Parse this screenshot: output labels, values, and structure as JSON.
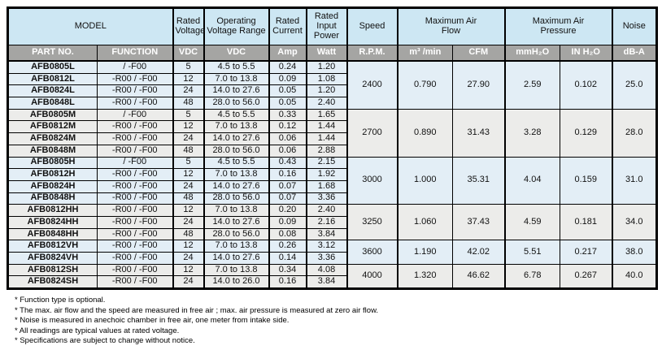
{
  "colors": {
    "header_blue": "#cde7f3",
    "subheader_gray": "#a5a5a3",
    "row_blue": "#e3eef6",
    "row_gray": "#ececea",
    "border": "#000000"
  },
  "header": {
    "top": [
      "MODEL",
      "Rated Voltage",
      "Operating Voltage Range",
      "Rated Current",
      "Rated Input Power",
      "Speed",
      "Maximum Air Flow",
      "Maximum Air Pressure",
      "Noise"
    ],
    "sub": [
      "PART NO.",
      "FUNCTION",
      "VDC",
      "VDC",
      "Amp",
      "Watt",
      "R.P.M.",
      "m³ /min",
      "CFM",
      "mmH₂O",
      "IN H₂O",
      "dB-A"
    ]
  },
  "groups": [
    {
      "tint": "blue",
      "speed": "2400",
      "m3min": "0.790",
      "cfm": "27.90",
      "mmh2o": "2.59",
      "inh2o": "0.102",
      "noise": "25.0",
      "rows": [
        {
          "part": "AFB0805L",
          "function": "/ -F00",
          "vdc": "5",
          "range": "4.5 to 5.5",
          "amp": "0.24",
          "watt": "1.20"
        },
        {
          "part": "AFB0812L",
          "function": "-R00 / -F00",
          "vdc": "12",
          "range": "7.0 to 13.8",
          "amp": "0.09",
          "watt": "1.08"
        },
        {
          "part": "AFB0824L",
          "function": "-R00 / -F00",
          "vdc": "24",
          "range": "14.0 to 27.6",
          "amp": "0.05",
          "watt": "1.20"
        },
        {
          "part": "AFB0848L",
          "function": "-R00 / -F00",
          "vdc": "48",
          "range": "28.0 to 56.0",
          "amp": "0.05",
          "watt": "2.40"
        }
      ]
    },
    {
      "tint": "gray",
      "speed": "2700",
      "m3min": "0.890",
      "cfm": "31.43",
      "mmh2o": "3.28",
      "inh2o": "0.129",
      "noise": "28.0",
      "rows": [
        {
          "part": "AFB0805M",
          "function": "/ -F00",
          "vdc": "5",
          "range": "4.5 to 5.5",
          "amp": "0.33",
          "watt": "1.65"
        },
        {
          "part": "AFB0812M",
          "function": "-R00 / -F00",
          "vdc": "12",
          "range": "7.0 to 13.8",
          "amp": "0.12",
          "watt": "1.44"
        },
        {
          "part": "AFB0824M",
          "function": "-R00 / -F00",
          "vdc": "24",
          "range": "14.0 to 27.6",
          "amp": "0.06",
          "watt": "1.44"
        },
        {
          "part": "AFB0848M",
          "function": "-R00 / -F00",
          "vdc": "48",
          "range": "28.0 to 56.0",
          "amp": "0.06",
          "watt": "2.88"
        }
      ]
    },
    {
      "tint": "blue",
      "speed": "3000",
      "m3min": "1.000",
      "cfm": "35.31",
      "mmh2o": "4.04",
      "inh2o": "0.159",
      "noise": "31.0",
      "rows": [
        {
          "part": "AFB0805H",
          "function": "/ -F00",
          "vdc": "5",
          "range": "4.5 to 5.5",
          "amp": "0.43",
          "watt": "2.15"
        },
        {
          "part": "AFB0812H",
          "function": "-R00 / -F00",
          "vdc": "12",
          "range": "7.0 to 13.8",
          "amp": "0.16",
          "watt": "1.92"
        },
        {
          "part": "AFB0824H",
          "function": "-R00 / -F00",
          "vdc": "24",
          "range": "14.0 to 27.6",
          "amp": "0.07",
          "watt": "1.68"
        },
        {
          "part": "AFB0848H",
          "function": "-R00 / -F00",
          "vdc": "48",
          "range": "28.0 to 56.0",
          "amp": "0.07",
          "watt": "3.36"
        }
      ]
    },
    {
      "tint": "gray",
      "speed": "3250",
      "m3min": "1.060",
      "cfm": "37.43",
      "mmh2o": "4.59",
      "inh2o": "0.181",
      "noise": "34.0",
      "rows": [
        {
          "part": "AFB0812HH",
          "function": "-R00 / -F00",
          "vdc": "12",
          "range": "7.0 to 13.8",
          "amp": "0.20",
          "watt": "2.40"
        },
        {
          "part": "AFB0824HH",
          "function": "-R00 / -F00",
          "vdc": "24",
          "range": "14.0 to 27.6",
          "amp": "0.09",
          "watt": "2.16"
        },
        {
          "part": "AFB0848HH",
          "function": "-R00 / -F00",
          "vdc": "48",
          "range": "28.0 to 56.0",
          "amp": "0.08",
          "watt": "3.84"
        }
      ]
    },
    {
      "tint": "blue",
      "speed": "3600",
      "m3min": "1.190",
      "cfm": "42.02",
      "mmh2o": "5.51",
      "inh2o": "0.217",
      "noise": "38.0",
      "rows": [
        {
          "part": "AFB0812VH",
          "function": "-R00 / -F00",
          "vdc": "12",
          "range": "7.0 to 13.8",
          "amp": "0.26",
          "watt": "3.12"
        },
        {
          "part": "AFB0824VH",
          "function": "-R00 / -F00",
          "vdc": "24",
          "range": "14.0 to 27.6",
          "amp": "0.14",
          "watt": "3.36"
        }
      ]
    },
    {
      "tint": "gray",
      "speed": "4000",
      "m3min": "1.320",
      "cfm": "46.62",
      "mmh2o": "6.78",
      "inh2o": "0.267",
      "noise": "40.0",
      "rows": [
        {
          "part": "AFB0812SH",
          "function": "-R00 / -F00",
          "vdc": "12",
          "range": "7.0 to 13.8",
          "amp": "0.34",
          "watt": "4.08"
        },
        {
          "part": "AFB0824SH",
          "function": "-R00 / -F00",
          "vdc": "24",
          "range": "14.0 to 26.0",
          "amp": "0.16",
          "watt": "3.84"
        }
      ]
    }
  ],
  "footnotes": [
    "* Function type is optional.",
    "* The max. air flow and the speed are measured in free air ; max. air pressure is measured at zero air flow.",
    "* Noise is measured in anechoic chamber in free air, one meter from intake side.",
    "* All readings are typical values at rated voltage.",
    "* Specifications are subject to change without notice."
  ]
}
